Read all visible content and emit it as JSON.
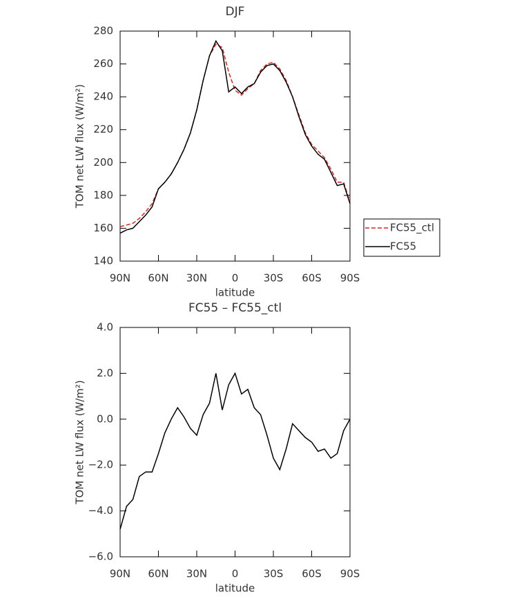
{
  "chart_data": [
    {
      "type": "line",
      "title": "DJF",
      "xlabel": "latitude",
      "ylabel": "TOM net LW flux (W/m²)",
      "x": [
        90,
        85,
        80,
        75,
        70,
        65,
        60,
        55,
        50,
        45,
        40,
        35,
        30,
        25,
        20,
        15,
        10,
        5,
        0,
        -5,
        -10,
        -15,
        -20,
        -25,
        -30,
        -35,
        -40,
        -45,
        -50,
        -55,
        -60,
        -65,
        -70,
        -75,
        -80,
        -85,
        -90
      ],
      "series": [
        {
          "name": "FC55_ctl",
          "color": "#e0201b",
          "dashed": true,
          "values": [
            161,
            162,
            163,
            166,
            170,
            175,
            184,
            188,
            193,
            200,
            208,
            218,
            232,
            250,
            265,
            272,
            270,
            255,
            244,
            241,
            245,
            248,
            256,
            260,
            261,
            257,
            250,
            240,
            229,
            218,
            211,
            207,
            203,
            196,
            188,
            188,
            176
          ]
        },
        {
          "name": "FC55",
          "color": "#000000",
          "dashed": false,
          "values": [
            157,
            159,
            160,
            164,
            168,
            173,
            184,
            188,
            193,
            200,
            208,
            218,
            232,
            250,
            265,
            274,
            268,
            243,
            246,
            242,
            246,
            248,
            255,
            259,
            260,
            256,
            249,
            240,
            228,
            217,
            210,
            205,
            202,
            194,
            186,
            187,
            175
          ]
        }
      ],
      "xlim": [
        90,
        -90
      ],
      "xticks": [
        {
          "value": 90,
          "label": "90N"
        },
        {
          "value": 60,
          "label": "60N"
        },
        {
          "value": 30,
          "label": "30N"
        },
        0,
        {
          "value": -30,
          "label": "30S"
        },
        {
          "value": -60,
          "label": "60S"
        },
        {
          "value": -90,
          "label": "90S"
        }
      ],
      "ylim": [
        140,
        280
      ],
      "yticks": [
        140,
        160,
        180,
        200,
        220,
        240,
        260,
        280
      ],
      "legend": "right"
    },
    {
      "type": "line",
      "title": "FC55 – FC55_ctl",
      "xlabel": "latitude",
      "ylabel": "TOM net LW flux (W/m²)",
      "x": [
        90,
        85,
        80,
        75,
        70,
        65,
        60,
        55,
        50,
        45,
        40,
        35,
        30,
        25,
        20,
        15,
        10,
        5,
        0,
        -5,
        -10,
        -15,
        -20,
        -25,
        -30,
        -35,
        -40,
        -45,
        -50,
        -55,
        -60,
        -65,
        -70,
        -75,
        -80,
        -85,
        -90
      ],
      "series": [
        {
          "color": "#000000",
          "dashed": false,
          "values": [
            -4.8,
            -3.8,
            -3.5,
            -2.5,
            -2.3,
            -2.3,
            -1.5,
            -0.6,
            0.0,
            0.5,
            0.1,
            -0.4,
            -0.7,
            0.2,
            0.7,
            2.0,
            0.4,
            1.5,
            2.0,
            1.1,
            1.3,
            0.5,
            0.2,
            -0.7,
            -1.7,
            -2.2,
            -1.3,
            -0.2,
            -0.5,
            -0.8,
            -1.0,
            -1.4,
            -1.3,
            -1.7,
            -1.5,
            -0.5,
            0.0
          ]
        }
      ],
      "xlim": [
        90,
        -90
      ],
      "xticks": [
        {
          "value": 90,
          "label": "90N"
        },
        {
          "value": 60,
          "label": "60N"
        },
        {
          "value": 30,
          "label": "30N"
        },
        0,
        {
          "value": -30,
          "label": "30S"
        },
        {
          "value": -60,
          "label": "60S"
        },
        {
          "value": -90,
          "label": "90S"
        }
      ],
      "ylim": [
        -6,
        4
      ],
      "yticks": [
        {
          "value": -6,
          "label": "−6.0"
        },
        {
          "value": -4,
          "label": "−4.0"
        },
        {
          "value": -2,
          "label": "−2.0"
        },
        {
          "value": 0,
          "label": "0.0"
        },
        {
          "value": 2,
          "label": "2.0"
        },
        {
          "value": 4,
          "label": "4.0"
        }
      ]
    }
  ]
}
